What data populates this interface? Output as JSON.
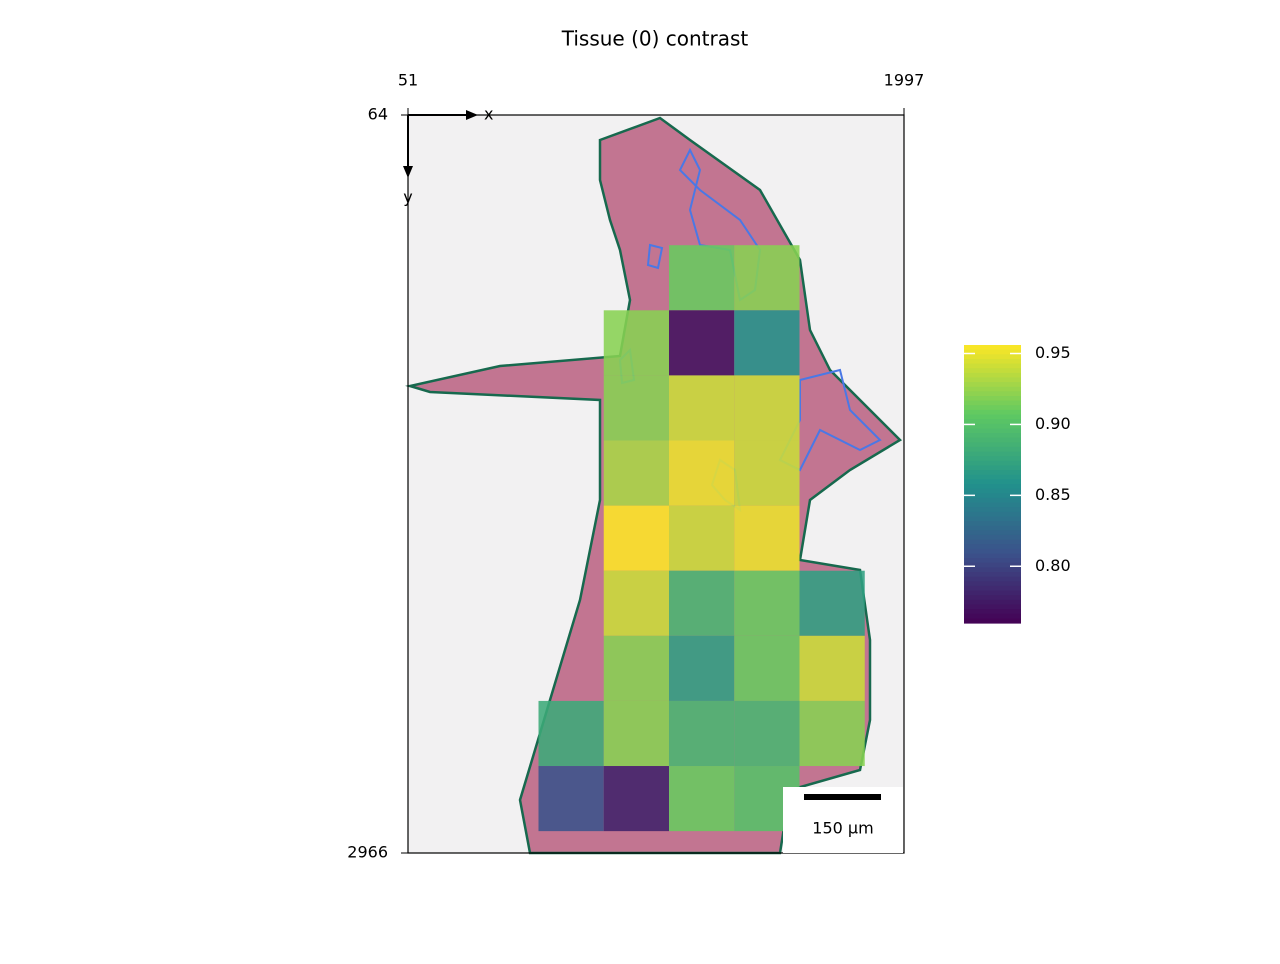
{
  "chart_data": {
    "type": "heatmap",
    "title": "Tissue (0) contrast",
    "x_label": "x",
    "y_label": "y",
    "xlim": [
      51,
      1997
    ],
    "xticks": [
      51,
      1997
    ],
    "ylim": [
      2966,
      64
    ],
    "yticks": [
      64,
      2966
    ],
    "xbins": [
      563,
      819,
      1075,
      1331,
      1587,
      1843
    ],
    "ybins": [
      576,
      832,
      1088,
      1344,
      1600,
      1856,
      2112,
      2368,
      2624,
      2880
    ],
    "values": [
      [
        null,
        null,
        0.91,
        0.92,
        null
      ],
      [
        null,
        0.92,
        0.77,
        0.86,
        null
      ],
      [
        null,
        0.92,
        0.94,
        0.94,
        null
      ],
      [
        null,
        0.93,
        0.95,
        0.94,
        null
      ],
      [
        null,
        0.96,
        0.94,
        0.95,
        null
      ],
      [
        null,
        0.94,
        0.89,
        0.91,
        0.87
      ],
      [
        null,
        0.92,
        0.87,
        0.91,
        0.94
      ],
      [
        0.88,
        0.92,
        0.89,
        0.89,
        0.92
      ],
      [
        0.81,
        0.78,
        0.91,
        0.9,
        null
      ]
    ],
    "colormap": "viridis",
    "clim": [
      0.76,
      0.956
    ],
    "cticks": [
      {
        "value": 0.8,
        "label": "0.80"
      },
      0.85,
      {
        "value": 0.9,
        "label": "0.90"
      },
      0.95
    ],
    "scalebar": {
      "label": "150 µm"
    }
  }
}
